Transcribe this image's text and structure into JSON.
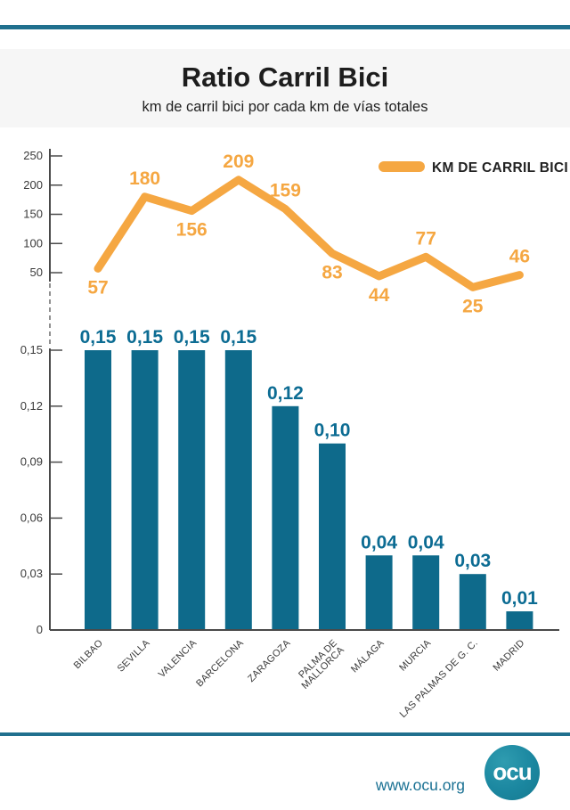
{
  "header": {
    "title": "Ratio Carril Bici",
    "subtitle": "km de carril bici por cada km de vías totales"
  },
  "footer": {
    "website": "www.ocu.org",
    "logo_text": "ocu"
  },
  "colors": {
    "accent_orange": "#F5A742",
    "bar_teal": "#0E6A8B",
    "label_teal": "#0C6C93",
    "rule_teal": "#20708E",
    "axis_gray": "#4a4a4a",
    "link_teal": "#1A7193"
  },
  "chart_data": [
    {
      "type": "line",
      "title": "KM DE CARRIL BICI",
      "legend": "KM DE CARRIL BICI",
      "legend_position": "top-right",
      "grid": false,
      "categories": [
        "BILBAO",
        "SEVILLA",
        "VALENCIA",
        "BARCELONA",
        "ZARAGOZA",
        "PALMA DE MALLORCA",
        "MÁLAGA",
        "MURCIA",
        "LAS PALMAS DE G. C.",
        "MADRID"
      ],
      "values": [
        57,
        180,
        156,
        209,
        159,
        83,
        44,
        77,
        25,
        46
      ],
      "label_positions": [
        "below",
        "above",
        "below",
        "above",
        "above",
        "below",
        "below",
        "above",
        "below",
        "above"
      ],
      "ylim": [
        0,
        250
      ],
      "yticks": [
        250,
        200,
        150,
        100,
        50
      ],
      "xlabel": "",
      "ylabel": ""
    },
    {
      "type": "bar",
      "categories": [
        "BILBAO",
        "SEVILLA",
        "VALENCIA",
        "BARCELONA",
        "ZARAGOZA",
        "PALMA DE\nMALLORCA",
        "MÁLAGA",
        "MURCIA",
        "LAS PALMAS DE G. C.",
        "MADRID"
      ],
      "values": [
        0.15,
        0.15,
        0.15,
        0.15,
        0.12,
        0.1,
        0.04,
        0.04,
        0.03,
        0.01
      ],
      "value_labels": [
        "0,15",
        "0,15",
        "0,15",
        "0,15",
        "0,12",
        "0,10",
        "0,04",
        "0,04",
        "0,03",
        "0,01"
      ],
      "ylim": [
        0,
        0.16
      ],
      "yticks": [
        0.15,
        0.12,
        0.09,
        0.06,
        0.03,
        0
      ],
      "ytick_labels": [
        "0,15",
        "0,12",
        "0,09",
        "0,06",
        "0,03",
        "0"
      ],
      "xlabel": "",
      "ylabel": ""
    }
  ]
}
